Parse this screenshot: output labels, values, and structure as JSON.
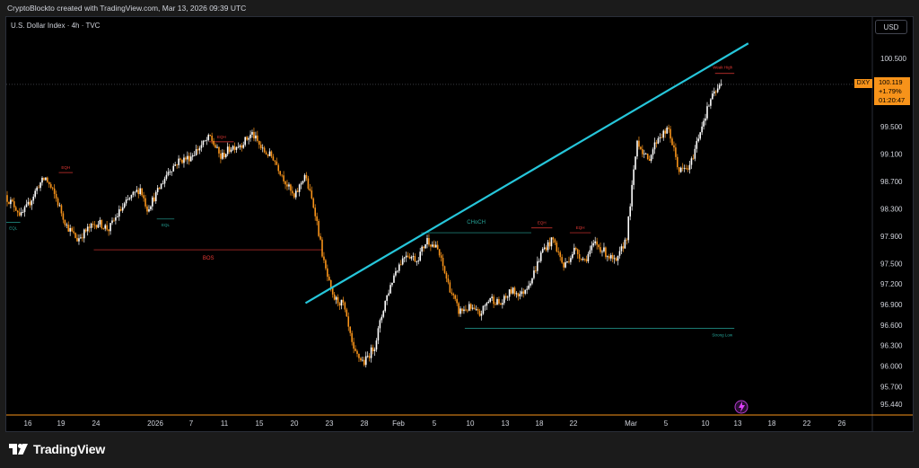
{
  "header": {
    "credit": "CryptoBlockto created with TradingView.com, Mar 13, 2026 09:39 UTC"
  },
  "symbol": {
    "title": "U.S. Dollar Index · 4h · TVC",
    "ticker": "DXY"
  },
  "currency": "USD",
  "price_tag": {
    "price": "100.119",
    "change": "+1.79%",
    "countdown": "01:20:47"
  },
  "brand": "TradingView",
  "colors": {
    "bull": "#ffffff",
    "bear": "#f7931a",
    "trendline": "#26c6da",
    "bos": "#e53935",
    "choch": "#26a69a",
    "axis_text": "#d1d4dc",
    "eqh": "#e53935",
    "eql": "#26a69a"
  },
  "chart_data": {
    "type": "candlestick",
    "y_ticks": [
      100.5,
      99.5,
      99.1,
      98.7,
      98.3,
      97.9,
      97.5,
      97.2,
      96.9,
      96.6,
      96.3,
      96.0,
      95.7,
      95.44
    ],
    "y_tick_labels": [
      "100.500",
      "99.500",
      "99.100",
      "98.700",
      "98.300",
      "97.900",
      "97.500",
      "97.200",
      "96.900",
      "96.600",
      "96.300",
      "96.000",
      "95.700",
      "95.440"
    ],
    "x_tick_labels": [
      "16",
      "19",
      "24",
      "2026",
      "7",
      "11",
      "15",
      "20",
      "23",
      "28",
      "Feb",
      "5",
      "10",
      "13",
      "18",
      "22",
      "Mar",
      "5",
      "10",
      "13",
      "18",
      "22",
      "26"
    ],
    "close_anchors": [
      [
        0,
        98.45
      ],
      [
        4,
        98.35
      ],
      [
        8,
        98.2
      ],
      [
        12,
        98.35
      ],
      [
        18,
        98.65
      ],
      [
        22,
        98.75
      ],
      [
        28,
        98.45
      ],
      [
        34,
        98.05
      ],
      [
        40,
        97.85
      ],
      [
        46,
        98.0
      ],
      [
        52,
        98.1
      ],
      [
        58,
        98.0
      ],
      [
        64,
        98.25
      ],
      [
        70,
        98.45
      ],
      [
        76,
        98.6
      ],
      [
        80,
        98.3
      ],
      [
        86,
        98.55
      ],
      [
        92,
        98.85
      ],
      [
        98,
        99.0
      ],
      [
        104,
        99.05
      ],
      [
        110,
        99.2
      ],
      [
        116,
        99.35
      ],
      [
        122,
        99.05
      ],
      [
        128,
        99.2
      ],
      [
        134,
        99.25
      ],
      [
        140,
        99.4
      ],
      [
        146,
        99.15
      ],
      [
        152,
        99.05
      ],
      [
        158,
        98.75
      ],
      [
        164,
        98.45
      ],
      [
        170,
        98.8
      ],
      [
        176,
        98.25
      ],
      [
        181,
        97.5
      ],
      [
        186,
        97.0
      ],
      [
        192,
        96.9
      ],
      [
        198,
        96.2
      ],
      [
        204,
        96.05
      ],
      [
        210,
        96.3
      ],
      [
        216,
        96.95
      ],
      [
        222,
        97.4
      ],
      [
        228,
        97.65
      ],
      [
        234,
        97.55
      ],
      [
        240,
        97.85
      ],
      [
        246,
        97.7
      ],
      [
        252,
        97.2
      ],
      [
        258,
        96.8
      ],
      [
        264,
        96.85
      ],
      [
        270,
        96.75
      ],
      [
        276,
        97.0
      ],
      [
        282,
        96.9
      ],
      [
        288,
        97.1
      ],
      [
        294,
        97.05
      ],
      [
        300,
        97.3
      ],
      [
        306,
        97.7
      ],
      [
        312,
        97.85
      ],
      [
        318,
        97.45
      ],
      [
        324,
        97.7
      ],
      [
        330,
        97.55
      ],
      [
        336,
        97.8
      ],
      [
        342,
        97.65
      ],
      [
        348,
        97.5
      ],
      [
        354,
        97.9
      ],
      [
        360,
        99.3
      ],
      [
        366,
        99.0
      ],
      [
        372,
        99.35
      ],
      [
        378,
        99.45
      ],
      [
        384,
        98.85
      ],
      [
        390,
        98.9
      ],
      [
        396,
        99.45
      ],
      [
        402,
        99.9
      ],
      [
        408,
        100.12
      ]
    ],
    "trendline": {
      "from": [
        171,
        96.92
      ],
      "to": [
        424,
        100.72
      ]
    },
    "annotations": [
      {
        "label": "BOS",
        "price": 97.7,
        "from": 50,
        "to": 181
      },
      {
        "label": "CHoCH",
        "price": 97.95,
        "from": 237,
        "to": 300
      },
      {
        "label": "Strong Low",
        "price": 96.55,
        "from": 262,
        "to": 416
      },
      {
        "label": "Weak High",
        "price": 100.28,
        "from": 405,
        "to": 416
      },
      {
        "label": "EQH",
        "price": 98.83,
        "from": 30,
        "to": 38
      },
      {
        "label": "EQH",
        "price": 99.28,
        "from": 116,
        "to": 130
      },
      {
        "label": "EQH",
        "price": 98.02,
        "from": 300,
        "to": 312
      },
      {
        "label": "EQH",
        "price": 97.95,
        "from": 322,
        "to": 334
      },
      {
        "label": "EQL",
        "price": 98.1,
        "from": 0,
        "to": 8
      },
      {
        "label": "EQL",
        "price": 98.15,
        "from": 86,
        "to": 96
      }
    ]
  }
}
